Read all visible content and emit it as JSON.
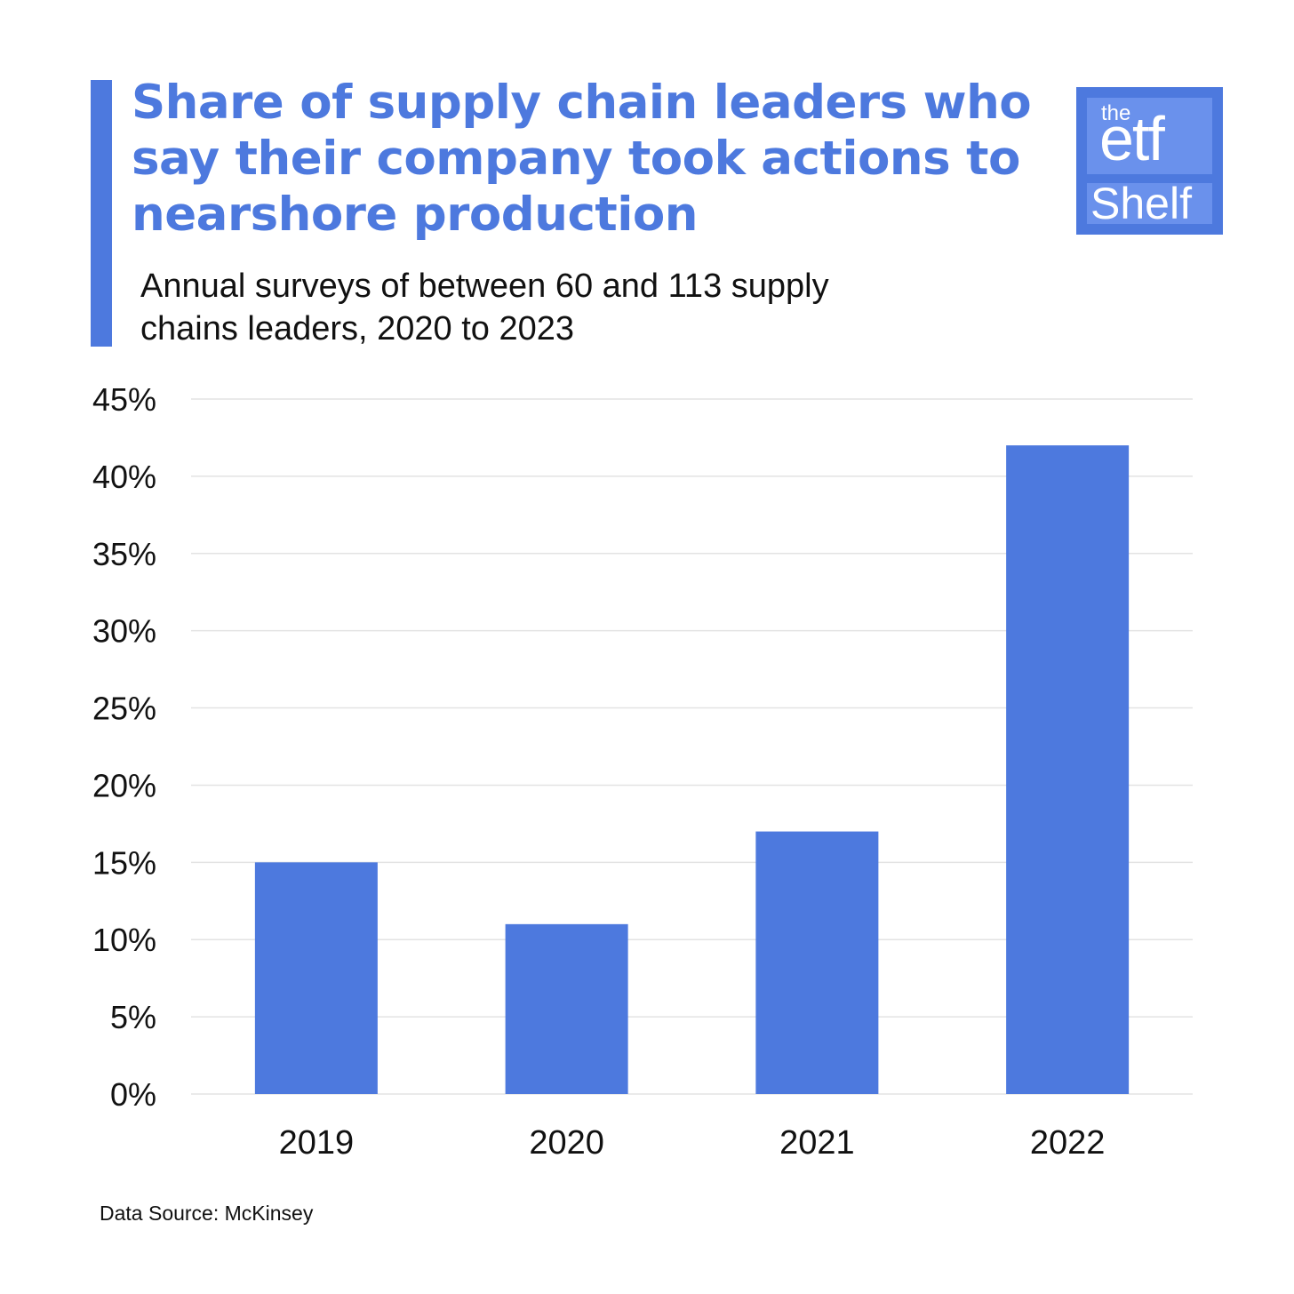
{
  "title": "Share of supply chain leaders who say their company took actions to nearshore production",
  "subtitle": "Annual surveys of between 60 and 113 supply chains leaders, 2020 to 2023",
  "logo": {
    "line1": "the",
    "line2": "etf",
    "line3": "Shelf"
  },
  "source": "Data Source: McKinsey",
  "colors": {
    "accent": "#4d79de",
    "grid": "#e3e3e3",
    "text": "#111111"
  },
  "chart_data": {
    "type": "bar",
    "categories": [
      "2019",
      "2020",
      "2021",
      "2022"
    ],
    "values": [
      15,
      11,
      17,
      42
    ],
    "value_unit": "%",
    "title": "Share of supply chain leaders who say their company took actions to nearshore production",
    "subtitle": "Annual surveys of between 60 and 113 supply chains leaders, 2020 to 2023",
    "xlabel": "",
    "ylabel": "",
    "ylim": [
      0,
      45
    ],
    "yticks": [
      "0%",
      "5%",
      "10%",
      "15%",
      "20%",
      "25%",
      "30%",
      "35%",
      "40%",
      "45%"
    ],
    "grid": true,
    "legend": "none"
  }
}
